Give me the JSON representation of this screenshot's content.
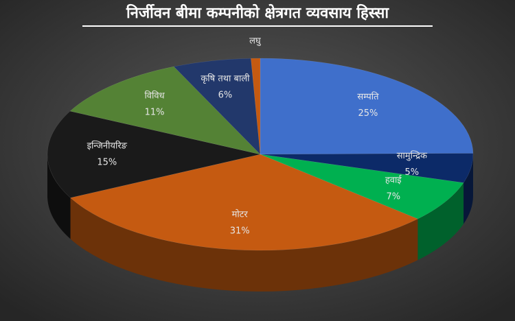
{
  "chart_data": {
    "type": "pie3d",
    "title": "निर्जीवन बीमा कम्पनीको क्षेत्रगत व्यवसाय हिस्सा",
    "categories": [
      "सम्पति",
      "सामुन्द्रिक",
      "हवाई",
      "मोटर",
      "इन्जिनीयरिङ",
      "विविध",
      "कृषि तथा बाली",
      "लघु"
    ],
    "values": [
      25,
      5,
      7,
      31,
      15,
      11,
      6,
      0.7
    ],
    "value_labels": [
      "25%",
      "5%",
      "7%",
      "31%",
      "15%",
      "11%",
      "6%",
      null
    ],
    "colors": [
      "#3f6fcb",
      "#0c2a68",
      "#00b050",
      "#c55a11",
      "#1a1a1a",
      "#548235",
      "#22386b",
      "#c55a11"
    ]
  }
}
